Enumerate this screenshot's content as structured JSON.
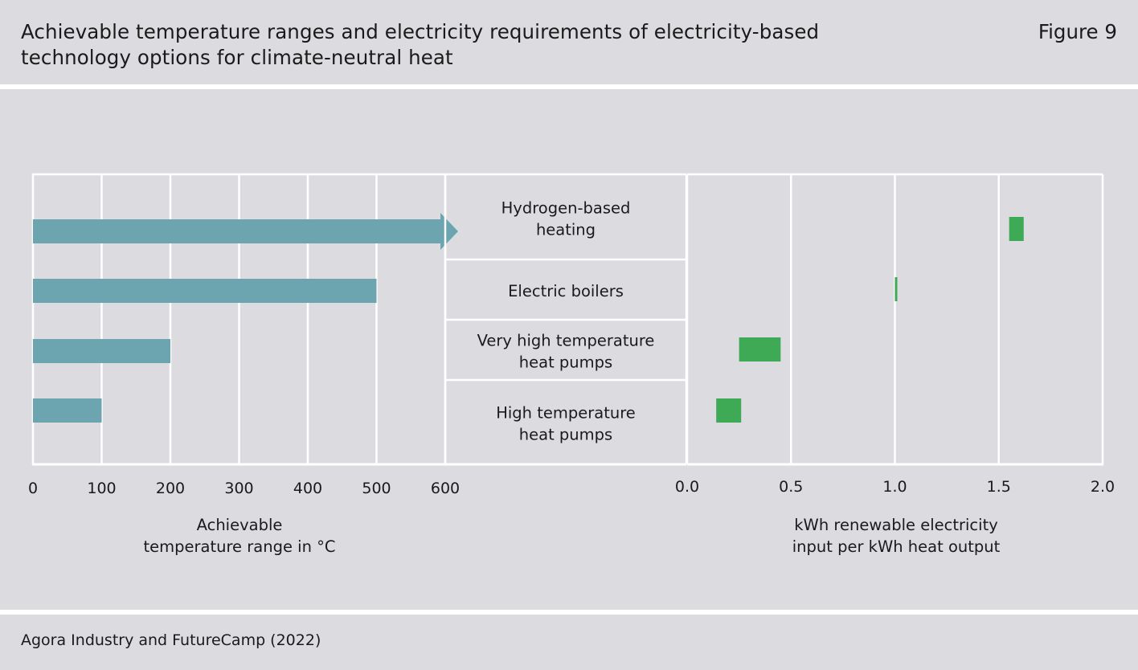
{
  "header": {
    "title": "Achievable temperature ranges and electricity requirements of electricity-based technology options for climate-neutral heat",
    "figure_label": "Figure 9"
  },
  "footer": {
    "source": "Agora Industry and FutureCamp (2022)"
  },
  "colors": {
    "temp_bar": "#6ca4b0",
    "elec_bar": "#3faa55",
    "grid": "#ffffff",
    "background": "#dcdbe0"
  },
  "chart_data": [
    {
      "type": "bar",
      "orientation": "horizontal",
      "xlabel_lines": [
        "Achievable",
        "temperature range in °C"
      ],
      "xlim": [
        0,
        600
      ],
      "ticks": [
        "0",
        "100",
        "200",
        "300",
        "400",
        "500",
        "600"
      ],
      "grid": true,
      "series": [
        {
          "values": [
            {
              "category": "Hydrogen-based heating",
              "min": 0,
              "max": 600,
              "open_ended": true
            },
            {
              "category": "Electric boilers",
              "min": 0,
              "max": 500,
              "open_ended": false
            },
            {
              "category": "Very high temperature heat pumps",
              "min": 0,
              "max": 200,
              "open_ended": false
            },
            {
              "category": "High temperature heat pumps",
              "min": 0,
              "max": 100,
              "open_ended": false
            }
          ]
        }
      ]
    },
    {
      "type": "bar",
      "orientation": "horizontal",
      "xlabel_lines": [
        "kWh renewable electricity",
        "input per kWh heat output"
      ],
      "xlim": [
        0,
        2
      ],
      "ticks": [
        "0.0",
        "0.5",
        "1.0",
        "1.5",
        "2.0"
      ],
      "grid": true,
      "series": [
        {
          "values": [
            {
              "category": "Hydrogen-based heating",
              "min": 1.55,
              "max": 1.62
            },
            {
              "category": "Electric boilers",
              "min": 1.0,
              "max": 1.01
            },
            {
              "category": "Very high temperature heat pumps",
              "min": 0.25,
              "max": 0.45
            },
            {
              "category": "High temperature heat pumps",
              "min": 0.14,
              "max": 0.26
            }
          ]
        }
      ]
    }
  ],
  "categories": [
    {
      "lines": [
        "Hydrogen-based",
        "heating"
      ]
    },
    {
      "lines": [
        "Electric boilers"
      ]
    },
    {
      "lines": [
        "Very high temperature",
        "heat pumps"
      ]
    },
    {
      "lines": [
        "High temperature",
        "heat pumps"
      ]
    }
  ]
}
